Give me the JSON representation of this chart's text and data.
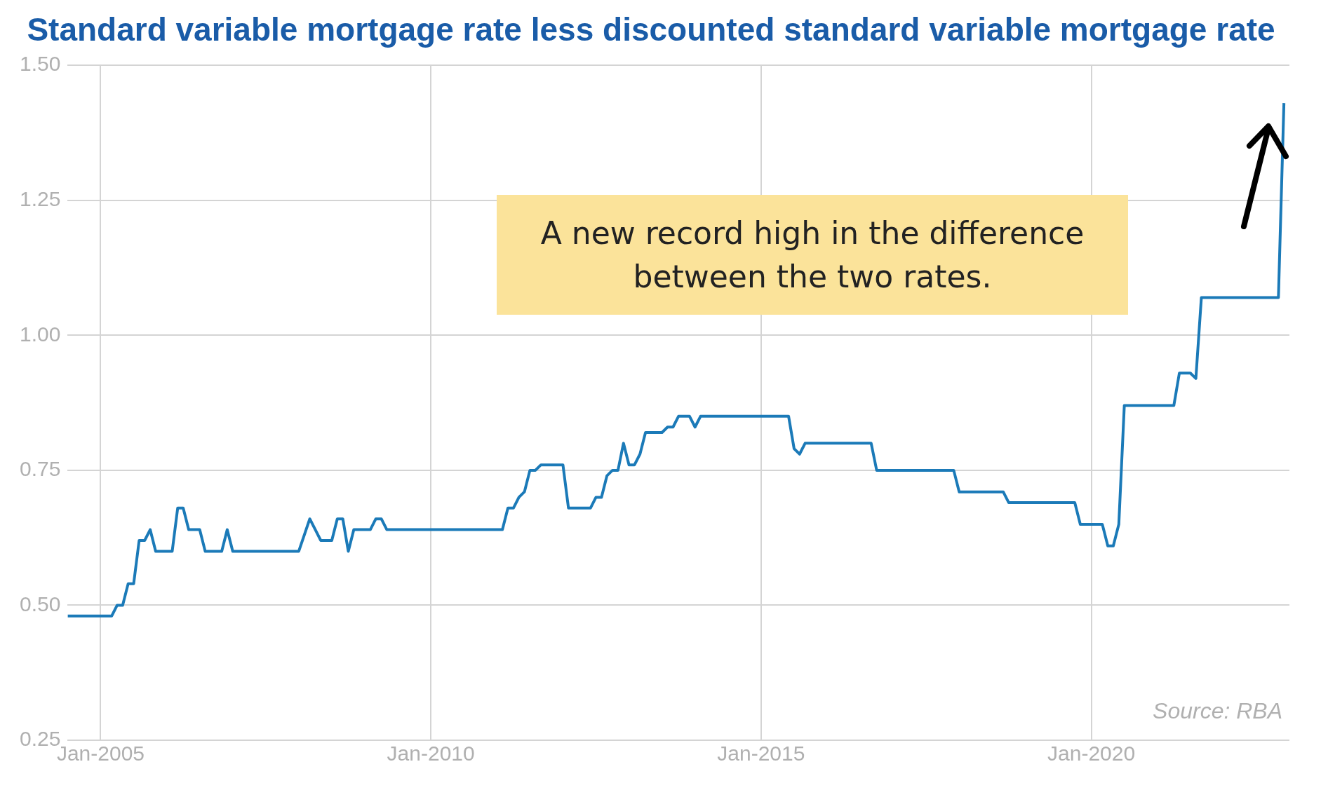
{
  "chart_data": {
    "type": "line",
    "title": "Standard variable mortgage rate less discounted standard variable mortgage rate",
    "x": [
      "2004-07",
      "2005-03",
      "2005-04",
      "2005-05",
      "2005-06",
      "2005-07",
      "2005-08",
      "2005-09",
      "2005-10",
      "2005-11",
      "2006-02",
      "2006-03",
      "2006-04",
      "2006-05",
      "2006-07",
      "2006-08",
      "2006-11",
      "2006-12",
      "2007-01",
      "2008-01",
      "2008-03",
      "2008-05",
      "2008-07",
      "2008-08",
      "2008-09",
      "2008-10",
      "2008-11",
      "2009-02",
      "2009-03",
      "2009-04",
      "2009-05",
      "2011-02",
      "2011-03",
      "2011-04",
      "2011-05",
      "2011-06",
      "2011-07",
      "2011-08",
      "2011-09",
      "2012-01",
      "2012-02",
      "2012-06",
      "2012-07",
      "2012-08",
      "2012-09",
      "2012-10",
      "2012-11",
      "2012-12",
      "2013-01",
      "2013-02",
      "2013-03",
      "2013-04",
      "2013-07",
      "2013-08",
      "2013-09",
      "2013-10",
      "2013-12",
      "2014-01",
      "2014-02",
      "2015-06",
      "2015-07",
      "2015-08",
      "2015-09",
      "2016-09",
      "2016-10",
      "2017-12",
      "2018-01",
      "2018-09",
      "2018-10",
      "2019-10",
      "2019-11",
      "2020-03",
      "2020-04",
      "2020-05",
      "2020-06",
      "2020-07",
      "2021-04",
      "2021-05",
      "2021-07",
      "2021-08",
      "2021-09",
      "2022-11",
      "2022-12"
    ],
    "series": [
      {
        "color": "#1b7ab8",
        "values": [
          0.48,
          0.48,
          0.5,
          0.5,
          0.54,
          0.54,
          0.62,
          0.62,
          0.64,
          0.6,
          0.6,
          0.68,
          0.68,
          0.64,
          0.64,
          0.6,
          0.6,
          0.64,
          0.6,
          0.6,
          0.66,
          0.62,
          0.62,
          0.66,
          0.66,
          0.6,
          0.64,
          0.64,
          0.66,
          0.66,
          0.64,
          0.64,
          0.68,
          0.68,
          0.7,
          0.71,
          0.75,
          0.75,
          0.76,
          0.76,
          0.68,
          0.68,
          0.7,
          0.7,
          0.74,
          0.75,
          0.75,
          0.8,
          0.76,
          0.76,
          0.78,
          0.82,
          0.82,
          0.83,
          0.83,
          0.85,
          0.85,
          0.83,
          0.85,
          0.85,
          0.79,
          0.78,
          0.8,
          0.8,
          0.75,
          0.75,
          0.71,
          0.71,
          0.69,
          0.69,
          0.65,
          0.65,
          0.61,
          0.61,
          0.65,
          0.87,
          0.87,
          0.93,
          0.93,
          0.92,
          1.07,
          1.07,
          1.43
        ]
      }
    ],
    "xlim": [
      "2004-07",
      "2023-01"
    ],
    "xticks": [
      {
        "value": "2005-01",
        "label": "Jan-2005"
      },
      {
        "value": "2010-01",
        "label": "Jan-2010"
      },
      {
        "value": "2015-01",
        "label": "Jan-2015"
      },
      {
        "value": "2020-01",
        "label": "Jan-2020"
      }
    ],
    "ylim": [
      0.25,
      1.5
    ],
    "yticks": [
      {
        "value": 0.25,
        "label": "0.25"
      },
      {
        "value": 0.5,
        "label": "0.50"
      },
      {
        "value": 0.75,
        "label": "0.75"
      },
      {
        "value": 1,
        "label": "1.00"
      },
      {
        "value": 1.25,
        "label": "1.25"
      },
      {
        "value": 1.5,
        "label": "1.50"
      }
    ],
    "grid": true,
    "annotations": [
      "A new record high in the difference between the two rates.",
      "Source: RBA"
    ]
  }
}
